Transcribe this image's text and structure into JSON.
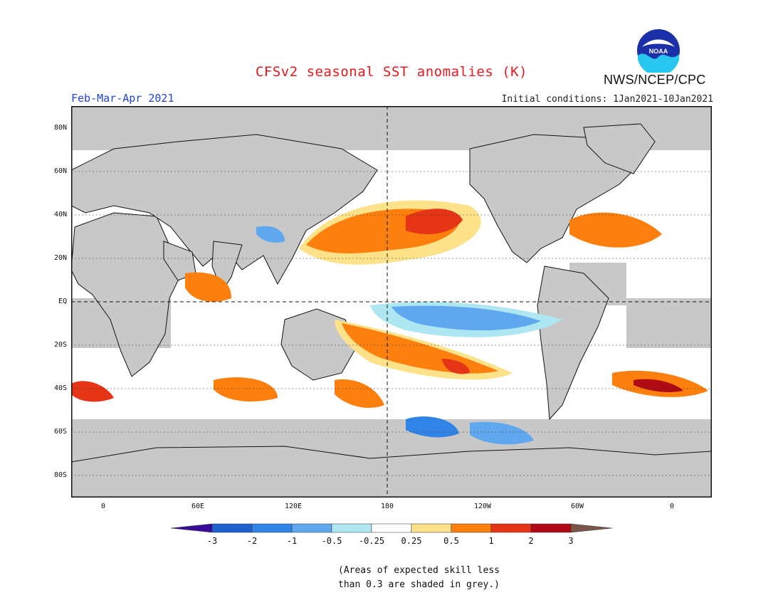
{
  "header": {
    "title": "CFSv2 seasonal SST anomalies (K)",
    "season": "Feb-Mar-Apr 2021",
    "initial_conditions": "Initial conditions: 1Jan2021-10Jan2021",
    "agency": "NWS/NCEP/CPC",
    "logo_text": "NOAA"
  },
  "map": {
    "lat_labels": [
      "80N",
      "60N",
      "40N",
      "20N",
      "EQ",
      "20S",
      "40S",
      "60S",
      "80S"
    ],
    "lon_labels": [
      "0",
      "60E",
      "120E",
      "180",
      "120W",
      "60W",
      "0"
    ]
  },
  "colorbar": {
    "tick_labels": [
      "-3",
      "-2",
      "-1",
      "-0.5",
      "-0.25",
      "0.25",
      "0.5",
      "1",
      "2",
      "3"
    ],
    "colors": [
      "#3a0a99",
      "#1f5fd0",
      "#2f84e6",
      "#5fa8ef",
      "#aee6f2",
      "#ffffff",
      "#fde28a",
      "#fd7f0d",
      "#e63416",
      "#b00a14",
      "#7a5548"
    ]
  },
  "note": {
    "line1": "(Areas of expected skill less",
    "line2": "than 0.3 are shaded in grey.)"
  },
  "colors": {
    "title": "#e8191c",
    "season": "#2344d6",
    "grey_skill": "#c8c8c8"
  }
}
